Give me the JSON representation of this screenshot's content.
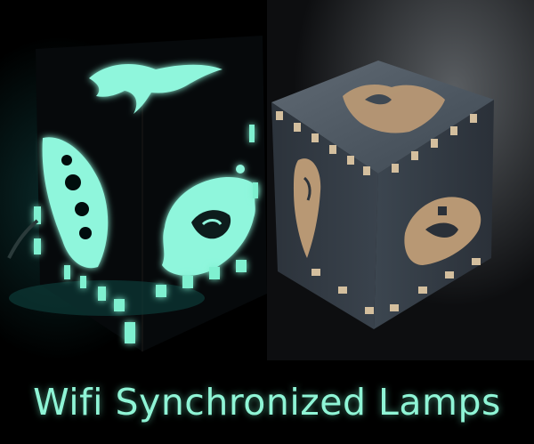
{
  "caption": {
    "text": "Wifi Synchronized Lamps"
  },
  "colors": {
    "background": "#000000",
    "glow": "#7ff0d0",
    "caption_text": "#8ff5d6",
    "wood_top": "#4a5560",
    "wood_side": "#3b4550",
    "wood_cutout": "#b89874"
  },
  "images": {
    "left": "lit-lamp-cube",
    "right": "unlit-wooden-lamp-cube"
  }
}
